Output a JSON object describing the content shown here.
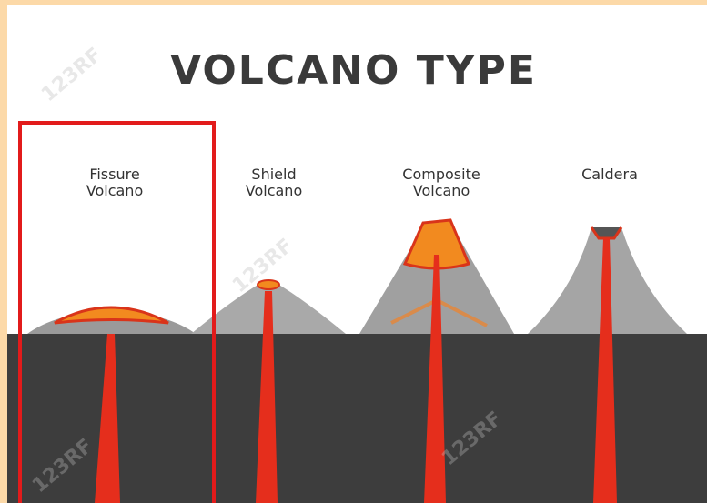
{
  "header": {
    "title": "VOLCANO TYPE"
  },
  "volcanoes": [
    {
      "label": "Fissure Volcano"
    },
    {
      "label": "Shield Volcano"
    },
    {
      "label": "Composite Volcano"
    },
    {
      "label": "Caldera"
    }
  ],
  "watermark": "123RF"
}
